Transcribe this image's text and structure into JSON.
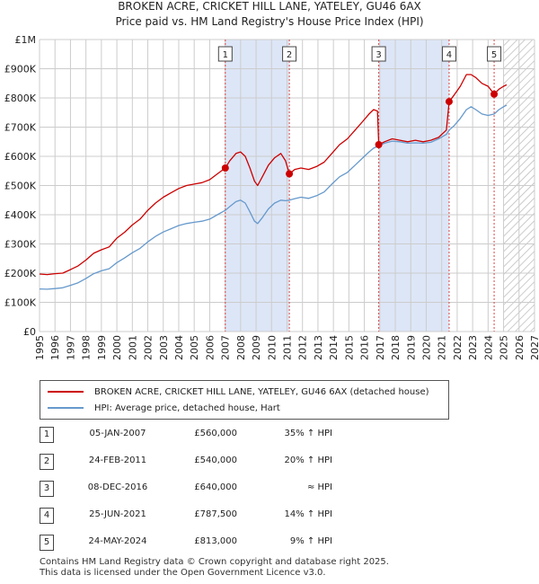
{
  "title_line1": "BROKEN ACRE, CRICKET HILL LANE, YATELEY, GU46 6AX",
  "title_line2": "Price paid vs. HM Land Registry's House Price Index (HPI)",
  "colors": {
    "price_line": "#cc0000",
    "hpi_line": "#6699cc",
    "shade": "#dde6f7",
    "marker_line": "#dd4444",
    "grid": "#cccccc"
  },
  "chart_data": {
    "type": "line",
    "x_range": [
      1995,
      2027
    ],
    "y_range": [
      0,
      1000000
    ],
    "y_ticks": [
      {
        "value": 0,
        "label": "£0"
      },
      {
        "value": 100000,
        "label": "£100K"
      },
      {
        "value": 200000,
        "label": "£200K"
      },
      {
        "value": 300000,
        "label": "£300K"
      },
      {
        "value": 400000,
        "label": "£400K"
      },
      {
        "value": 500000,
        "label": "£500K"
      },
      {
        "value": 600000,
        "label": "£600K"
      },
      {
        "value": 700000,
        "label": "£700K"
      },
      {
        "value": 800000,
        "label": "£800K"
      },
      {
        "value": 900000,
        "label": "£900K"
      },
      {
        "value": 1000000,
        "label": "£1M"
      }
    ],
    "x_ticks": [
      "1995",
      "1996",
      "1997",
      "1998",
      "1999",
      "2000",
      "2001",
      "2002",
      "2003",
      "2004",
      "2005",
      "2006",
      "2007",
      "2008",
      "2009",
      "2010",
      "2011",
      "2012",
      "2013",
      "2014",
      "2015",
      "2016",
      "2017",
      "2018",
      "2019",
      "2020",
      "2021",
      "2022",
      "2023",
      "2024",
      "2025",
      "2026",
      "2027"
    ],
    "shaded_periods": [
      [
        2007.01,
        2011.15
      ],
      [
        2016.93,
        2021.48
      ]
    ],
    "hatched_from": 2025.0,
    "series": [
      {
        "name": "BROKEN ACRE, CRICKET HILL LANE, YATELEY, GU46 6AX (detached house)",
        "color": "#cc0000",
        "points": [
          [
            1995.0,
            197000
          ],
          [
            1995.5,
            195000
          ],
          [
            1996.0,
            198000
          ],
          [
            1996.5,
            200000
          ],
          [
            1997.0,
            212000
          ],
          [
            1997.5,
            225000
          ],
          [
            1998.0,
            245000
          ],
          [
            1998.5,
            268000
          ],
          [
            1999.0,
            280000
          ],
          [
            1999.5,
            290000
          ],
          [
            2000.0,
            320000
          ],
          [
            2000.5,
            340000
          ],
          [
            2001.0,
            365000
          ],
          [
            2001.5,
            385000
          ],
          [
            2002.0,
            415000
          ],
          [
            2002.5,
            440000
          ],
          [
            2003.0,
            460000
          ],
          [
            2003.5,
            475000
          ],
          [
            2004.0,
            490000
          ],
          [
            2004.5,
            500000
          ],
          [
            2005.0,
            505000
          ],
          [
            2005.5,
            510000
          ],
          [
            2006.0,
            520000
          ],
          [
            2006.5,
            540000
          ],
          [
            2007.01,
            560000
          ],
          [
            2007.3,
            585000
          ],
          [
            2007.7,
            610000
          ],
          [
            2008.0,
            615000
          ],
          [
            2008.3,
            600000
          ],
          [
            2008.6,
            560000
          ],
          [
            2008.9,
            515000
          ],
          [
            2009.1,
            500000
          ],
          [
            2009.4,
            530000
          ],
          [
            2009.8,
            570000
          ],
          [
            2010.2,
            595000
          ],
          [
            2010.6,
            610000
          ],
          [
            2010.9,
            585000
          ],
          [
            2011.15,
            540000
          ],
          [
            2011.5,
            555000
          ],
          [
            2011.9,
            560000
          ],
          [
            2012.4,
            555000
          ],
          [
            2012.9,
            565000
          ],
          [
            2013.4,
            580000
          ],
          [
            2013.9,
            610000
          ],
          [
            2014.4,
            640000
          ],
          [
            2014.9,
            660000
          ],
          [
            2015.4,
            690000
          ],
          [
            2015.9,
            720000
          ],
          [
            2016.3,
            745000
          ],
          [
            2016.6,
            760000
          ],
          [
            2016.85,
            755000
          ],
          [
            2016.93,
            640000
          ],
          [
            2017.3,
            650000
          ],
          [
            2017.8,
            660000
          ],
          [
            2018.3,
            655000
          ],
          [
            2018.8,
            650000
          ],
          [
            2019.3,
            655000
          ],
          [
            2019.8,
            650000
          ],
          [
            2020.3,
            655000
          ],
          [
            2020.8,
            665000
          ],
          [
            2021.3,
            690000
          ],
          [
            2021.48,
            787500
          ],
          [
            2021.8,
            810000
          ],
          [
            2022.2,
            840000
          ],
          [
            2022.6,
            880000
          ],
          [
            2022.9,
            880000
          ],
          [
            2023.2,
            870000
          ],
          [
            2023.6,
            850000
          ],
          [
            2024.0,
            840000
          ],
          [
            2024.39,
            813000
          ],
          [
            2024.7,
            830000
          ],
          [
            2025.0,
            840000
          ],
          [
            2025.2,
            845000
          ]
        ]
      },
      {
        "name": "HPI: Average price, detached house, Hart",
        "color": "#6699cc",
        "points": [
          [
            1995.0,
            146000
          ],
          [
            1995.5,
            145000
          ],
          [
            1996.0,
            147000
          ],
          [
            1996.5,
            150000
          ],
          [
            1997.0,
            158000
          ],
          [
            1997.5,
            167000
          ],
          [
            1998.0,
            182000
          ],
          [
            1998.5,
            198000
          ],
          [
            1999.0,
            208000
          ],
          [
            1999.5,
            215000
          ],
          [
            2000.0,
            236000
          ],
          [
            2000.5,
            252000
          ],
          [
            2001.0,
            270000
          ],
          [
            2001.5,
            285000
          ],
          [
            2002.0,
            307000
          ],
          [
            2002.5,
            326000
          ],
          [
            2003.0,
            341000
          ],
          [
            2003.5,
            352000
          ],
          [
            2004.0,
            363000
          ],
          [
            2004.5,
            370000
          ],
          [
            2005.0,
            374000
          ],
          [
            2005.5,
            378000
          ],
          [
            2006.0,
            385000
          ],
          [
            2006.5,
            400000
          ],
          [
            2007.01,
            415000
          ],
          [
            2007.3,
            428000
          ],
          [
            2007.7,
            445000
          ],
          [
            2008.0,
            450000
          ],
          [
            2008.3,
            440000
          ],
          [
            2008.6,
            410000
          ],
          [
            2008.9,
            378000
          ],
          [
            2009.1,
            370000
          ],
          [
            2009.4,
            390000
          ],
          [
            2009.8,
            420000
          ],
          [
            2010.2,
            440000
          ],
          [
            2010.6,
            450000
          ],
          [
            2010.9,
            448000
          ],
          [
            2011.15,
            450000
          ],
          [
            2011.5,
            455000
          ],
          [
            2011.9,
            460000
          ],
          [
            2012.4,
            456000
          ],
          [
            2012.9,
            465000
          ],
          [
            2013.4,
            478000
          ],
          [
            2013.9,
            505000
          ],
          [
            2014.4,
            530000
          ],
          [
            2014.9,
            545000
          ],
          [
            2015.4,
            570000
          ],
          [
            2015.9,
            595000
          ],
          [
            2016.3,
            615000
          ],
          [
            2016.6,
            628000
          ],
          [
            2016.93,
            636000
          ],
          [
            2017.3,
            645000
          ],
          [
            2017.8,
            652000
          ],
          [
            2018.3,
            650000
          ],
          [
            2018.8,
            645000
          ],
          [
            2019.3,
            646000
          ],
          [
            2019.8,
            645000
          ],
          [
            2020.3,
            648000
          ],
          [
            2020.8,
            660000
          ],
          [
            2021.3,
            675000
          ],
          [
            2021.48,
            690000
          ],
          [
            2021.8,
            705000
          ],
          [
            2022.2,
            730000
          ],
          [
            2022.6,
            760000
          ],
          [
            2022.9,
            770000
          ],
          [
            2023.2,
            760000
          ],
          [
            2023.6,
            745000
          ],
          [
            2024.0,
            740000
          ],
          [
            2024.39,
            745000
          ],
          [
            2024.7,
            760000
          ],
          [
            2025.0,
            770000
          ],
          [
            2025.2,
            775000
          ]
        ]
      }
    ],
    "sales": [
      {
        "num": "1",
        "x": 2007.01,
        "price": 560000
      },
      {
        "num": "2",
        "x": 2011.15,
        "price": 540000
      },
      {
        "num": "3",
        "x": 2016.93,
        "price": 640000
      },
      {
        "num": "4",
        "x": 2021.48,
        "price": 787500
      },
      {
        "num": "5",
        "x": 2024.39,
        "price": 813000
      }
    ]
  },
  "legend": {
    "price_label": "BROKEN ACRE, CRICKET HILL LANE, YATELEY, GU46 6AX (detached house)",
    "hpi_label": "HPI: Average price, detached house, Hart"
  },
  "transactions": [
    {
      "num": "1",
      "date": "05-JAN-2007",
      "price": "£560,000",
      "hpi": "35% ↑ HPI"
    },
    {
      "num": "2",
      "date": "24-FEB-2011",
      "price": "£540,000",
      "hpi": "20% ↑ HPI"
    },
    {
      "num": "3",
      "date": "08-DEC-2016",
      "price": "£640,000",
      "hpi": "≈ HPI"
    },
    {
      "num": "4",
      "date": "25-JUN-2021",
      "price": "£787,500",
      "hpi": "14% ↑ HPI"
    },
    {
      "num": "5",
      "date": "24-MAY-2024",
      "price": "£813,000",
      "hpi": "9% ↑ HPI"
    }
  ],
  "footer": {
    "line1": "Contains HM Land Registry data © Crown copyright and database right 2025.",
    "line2": "This data is licensed under the Open Government Licence v3.0."
  }
}
